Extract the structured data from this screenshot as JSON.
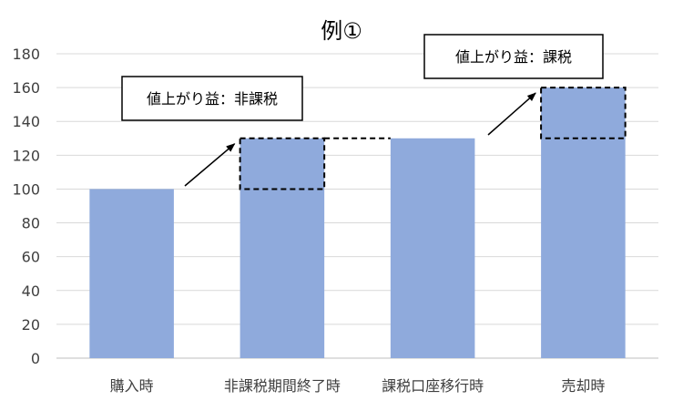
{
  "chart_data": {
    "type": "bar",
    "title": "例①",
    "categories": [
      "購入時",
      "非課税期間終了時",
      "課税口座移行時",
      "売却時"
    ],
    "values": [
      100,
      130,
      130,
      160
    ],
    "ylim": [
      0,
      180
    ],
    "yticks": [
      0,
      20,
      40,
      60,
      80,
      100,
      120,
      140,
      160,
      180
    ],
    "xlabel": "",
    "ylabel": "",
    "grid": true,
    "legend": "none",
    "bar_color": "#8faadc",
    "gridline_color": "#d9d9d9",
    "highlight_segments": [
      {
        "category": "非課税期間終了時",
        "from": 100,
        "to": 130
      },
      {
        "category": "売却時",
        "from": 130,
        "to": 160
      }
    ],
    "annotations": [
      {
        "text": "値上がり益：非課税",
        "target": "非課税期間終了時"
      },
      {
        "text": "値上がり益：課税",
        "target": "売却時"
      }
    ]
  }
}
